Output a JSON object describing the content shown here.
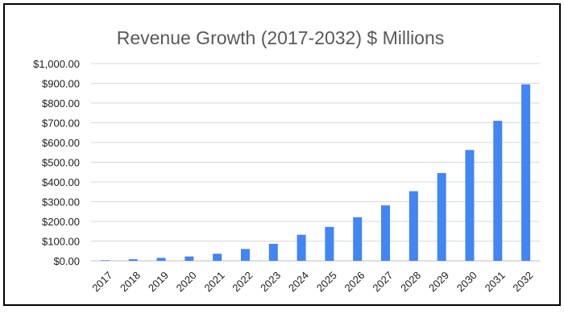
{
  "colors": {
    "bar": "#4285f4",
    "frame": "#000000",
    "background": "#ffffff"
  },
  "chart_data": {
    "type": "bar",
    "title": "Revenue Growth (2017-2032) $ Millions",
    "xlabel": "",
    "ylabel": "",
    "categories": [
      "2017",
      "2018",
      "2019",
      "2020",
      "2021",
      "2022",
      "2023",
      "2024",
      "2025",
      "2026",
      "2027",
      "2028",
      "2029",
      "2030",
      "2031",
      "2032"
    ],
    "values": [
      3,
      8,
      15,
      22,
      36,
      60,
      86,
      132,
      172,
      221,
      281,
      353,
      445,
      562,
      710,
      895
    ],
    "ylim": [
      0,
      1000
    ],
    "y_ticks": [
      {
        "value": 0,
        "label": "$0.00"
      },
      {
        "value": 100,
        "label": "$100.00"
      },
      {
        "value": 200,
        "label": "$200.00"
      },
      {
        "value": 300,
        "label": "$300.00"
      },
      {
        "value": 400,
        "label": "$400.00"
      },
      {
        "value": 500,
        "label": "$500.00"
      },
      {
        "value": 600,
        "label": "$600.00"
      },
      {
        "value": 700,
        "label": "$700.00"
      },
      {
        "value": 800,
        "label": "$800.00"
      },
      {
        "value": 900,
        "label": "$900.00"
      },
      {
        "value": 1000,
        "label": "$1,000.00"
      }
    ],
    "grid": true,
    "legend": "none"
  }
}
